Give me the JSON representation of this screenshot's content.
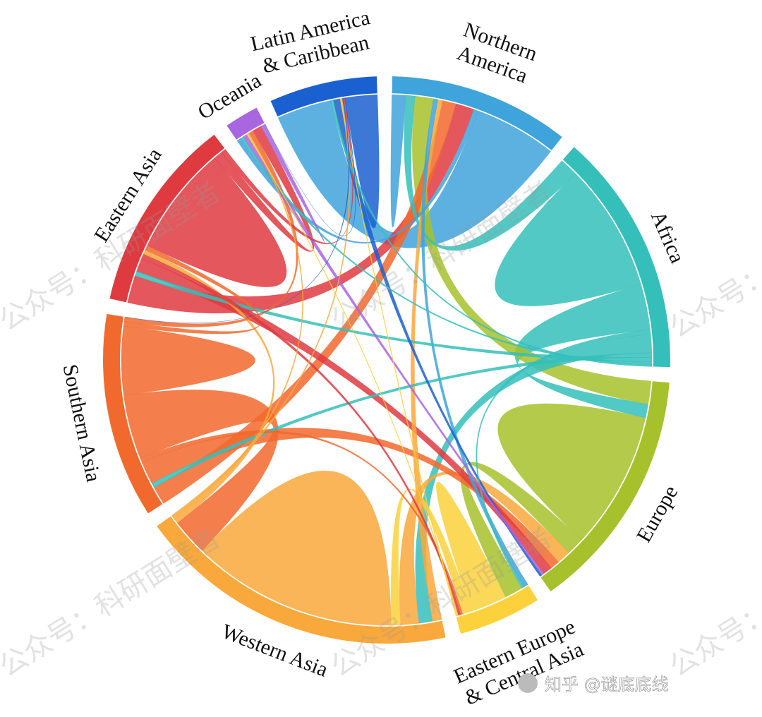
{
  "chart_data": {
    "type": "chord",
    "regions": [
      {
        "name": [
          "Northern",
          "America"
        ],
        "color": "#3fa3dc"
      },
      {
        "name": [
          "Africa"
        ],
        "color": "#35bfbb"
      },
      {
        "name": [
          "Europe"
        ],
        "color": "#a6c12b"
      },
      {
        "name": [
          "Eastern Europe",
          "& Central Asia"
        ],
        "color": "#fcd13c"
      },
      {
        "name": [
          "Western Asia"
        ],
        "color": "#f9a83b"
      },
      {
        "name": [
          "Southern Asia"
        ],
        "color": "#f2692e"
      },
      {
        "name": [
          "Eastern Asia"
        ],
        "color": "#df3a40"
      },
      {
        "name": [
          "Oceania"
        ],
        "color": "#a866df"
      },
      {
        "name": [
          "Latin America",
          "& Caribbean"
        ],
        "color": "#1b60d0"
      }
    ],
    "matrix": [
      [
        3,
        2,
        4,
        1,
        1,
        3,
        4,
        1,
        18
      ],
      [
        4,
        28,
        10,
        1,
        4,
        1,
        1,
        0.5,
        0.5
      ],
      [
        5,
        3,
        30,
        4,
        3,
        2,
        2,
        0.5,
        0.5
      ],
      [
        1,
        0.5,
        4,
        8,
        2,
        0.5,
        0.5,
        0.2,
        0.3
      ],
      [
        2,
        3,
        4,
        2,
        45,
        8,
        1,
        0.5,
        0.5
      ],
      [
        4,
        1,
        5,
        1,
        14,
        15,
        1,
        1,
        0
      ],
      [
        6,
        1,
        3,
        1,
        1,
        1,
        24,
        2,
        1
      ],
      [
        1,
        0.5,
        1,
        0.2,
        0.3,
        1,
        2,
        1,
        0
      ],
      [
        12,
        0.5,
        1.5,
        0.2,
        0.3,
        0.2,
        0.3,
        0.1,
        7
      ]
    ]
  },
  "watermarks": {
    "account": "公众号：科研面壁者",
    "zhihu": "知乎 @谜底底线"
  }
}
